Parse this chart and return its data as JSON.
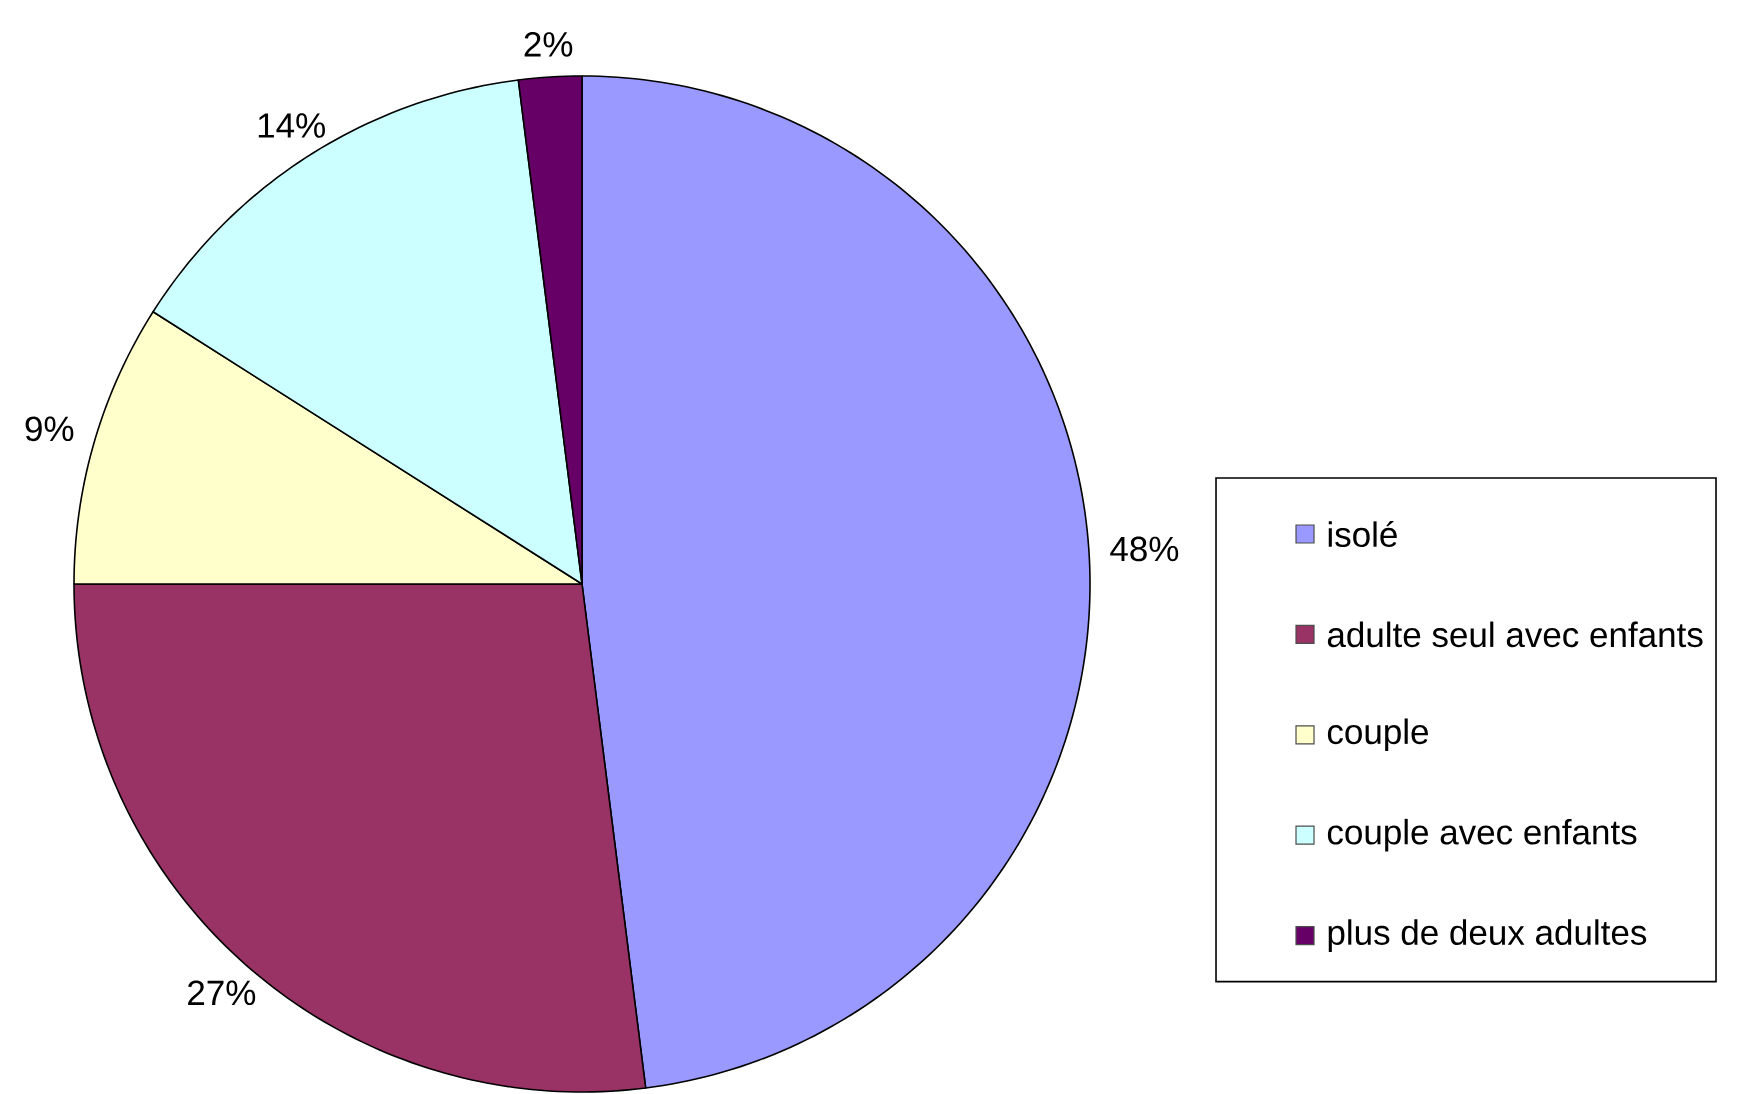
{
  "chart_data": {
    "type": "pie",
    "categories": [
      "isolé",
      "adulte seul avec enfants",
      "couple",
      "couple avec enfants",
      "plus de deux adultes"
    ],
    "values": [
      48,
      27,
      9,
      14,
      2
    ],
    "colors": [
      "#9999ff",
      "#993366",
      "#ffffcc",
      "#ccffff",
      "#660066"
    ],
    "value_labels": [
      "48%",
      "27%",
      "9%",
      "14%",
      "2%"
    ],
    "legend": "right"
  }
}
